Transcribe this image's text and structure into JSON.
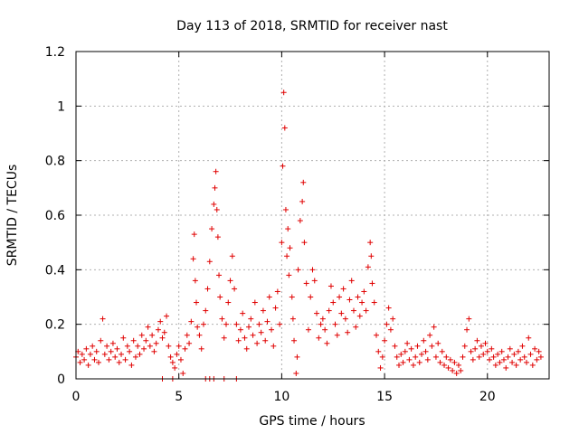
{
  "chart_data": {
    "type": "scatter",
    "title": "Day 113 of 2018, SRMTID for receiver nast",
    "xlabel": "GPS time / hours",
    "ylabel": "SRMTID / TECUs",
    "xlim": [
      0,
      23
    ],
    "ylim": [
      0,
      1.2
    ],
    "xticks": [
      0,
      5,
      10,
      15,
      20
    ],
    "yticks": [
      0,
      0.2,
      0.4,
      0.6,
      0.8,
      1,
      1.2
    ],
    "xtick_labels": [
      "0",
      "5",
      "10",
      "15",
      "20"
    ],
    "ytick_labels": [
      "0",
      "0.2",
      "0.4",
      "0.6",
      "0.8",
      "1",
      "1.2"
    ],
    "grid": true,
    "marker": "+",
    "series": [
      {
        "name": "SRMTID",
        "color": "#e00000",
        "points": [
          [
            0.0,
            0.08
          ],
          [
            0.1,
            0.1
          ],
          [
            0.2,
            0.06
          ],
          [
            0.3,
            0.09
          ],
          [
            0.4,
            0.07
          ],
          [
            0.5,
            0.11
          ],
          [
            0.6,
            0.05
          ],
          [
            0.7,
            0.09
          ],
          [
            0.8,
            0.12
          ],
          [
            0.9,
            0.07
          ],
          [
            1.0,
            0.1
          ],
          [
            1.1,
            0.06
          ],
          [
            1.2,
            0.14
          ],
          [
            1.3,
            0.22
          ],
          [
            1.4,
            0.09
          ],
          [
            1.5,
            0.12
          ],
          [
            1.6,
            0.07
          ],
          [
            1.7,
            0.1
          ],
          [
            1.8,
            0.13
          ],
          [
            1.9,
            0.08
          ],
          [
            2.0,
            0.11
          ],
          [
            2.1,
            0.06
          ],
          [
            2.2,
            0.09
          ],
          [
            2.3,
            0.15
          ],
          [
            2.4,
            0.07
          ],
          [
            2.5,
            0.12
          ],
          [
            2.6,
            0.1
          ],
          [
            2.7,
            0.05
          ],
          [
            2.8,
            0.14
          ],
          [
            2.9,
            0.08
          ],
          [
            3.0,
            0.12
          ],
          [
            3.1,
            0.09
          ],
          [
            3.2,
            0.16
          ],
          [
            3.3,
            0.11
          ],
          [
            3.4,
            0.14
          ],
          [
            3.5,
            0.19
          ],
          [
            3.6,
            0.12
          ],
          [
            3.7,
            0.16
          ],
          [
            3.8,
            0.1
          ],
          [
            3.9,
            0.13
          ],
          [
            4.0,
            0.18
          ],
          [
            4.1,
            0.21
          ],
          [
            4.2,
            0.15
          ],
          [
            4.3,
            0.17
          ],
          [
            4.4,
            0.23
          ],
          [
            4.5,
            0.12
          ],
          [
            4.6,
            0.08
          ],
          [
            4.7,
            0.06
          ],
          [
            4.8,
            0.04
          ],
          [
            4.9,
            0.09
          ],
          [
            5.0,
            0.12
          ],
          [
            5.1,
            0.07
          ],
          [
            5.2,
            0.02
          ],
          [
            5.3,
            0.11
          ],
          [
            5.4,
            0.16
          ],
          [
            5.5,
            0.13
          ],
          [
            5.6,
            0.21
          ],
          [
            5.7,
            0.44
          ],
          [
            5.75,
            0.53
          ],
          [
            5.8,
            0.36
          ],
          [
            5.85,
            0.28
          ],
          [
            5.9,
            0.19
          ],
          [
            6.0,
            0.16
          ],
          [
            6.1,
            0.11
          ],
          [
            6.2,
            0.2
          ],
          [
            6.3,
            0.25
          ],
          [
            6.4,
            0.33
          ],
          [
            6.5,
            0.43
          ],
          [
            6.6,
            0.55
          ],
          [
            6.7,
            0.64
          ],
          [
            6.75,
            0.7
          ],
          [
            6.8,
            0.76
          ],
          [
            6.85,
            0.62
          ],
          [
            6.9,
            0.52
          ],
          [
            6.95,
            0.38
          ],
          [
            7.0,
            0.3
          ],
          [
            7.1,
            0.22
          ],
          [
            7.2,
            0.15
          ],
          [
            7.3,
            0.2
          ],
          [
            7.4,
            0.28
          ],
          [
            7.5,
            0.36
          ],
          [
            7.6,
            0.45
          ],
          [
            7.7,
            0.33
          ],
          [
            7.8,
            0.2
          ],
          [
            7.9,
            0.14
          ],
          [
            8.0,
            0.18
          ],
          [
            8.1,
            0.24
          ],
          [
            8.2,
            0.15
          ],
          [
            8.3,
            0.11
          ],
          [
            8.4,
            0.19
          ],
          [
            8.5,
            0.22
          ],
          [
            8.6,
            0.16
          ],
          [
            8.7,
            0.28
          ],
          [
            8.8,
            0.13
          ],
          [
            8.9,
            0.2
          ],
          [
            9.0,
            0.17
          ],
          [
            9.1,
            0.25
          ],
          [
            9.2,
            0.14
          ],
          [
            9.3,
            0.21
          ],
          [
            9.4,
            0.3
          ],
          [
            9.5,
            0.18
          ],
          [
            9.6,
            0.12
          ],
          [
            9.7,
            0.26
          ],
          [
            9.8,
            0.32
          ],
          [
            9.9,
            0.2
          ],
          [
            10.0,
            0.5
          ],
          [
            10.05,
            0.78
          ],
          [
            10.1,
            1.05
          ],
          [
            10.15,
            0.92
          ],
          [
            10.2,
            0.62
          ],
          [
            10.25,
            0.45
          ],
          [
            10.3,
            0.55
          ],
          [
            10.35,
            0.38
          ],
          [
            10.4,
            0.48
          ],
          [
            10.5,
            0.3
          ],
          [
            10.55,
            0.22
          ],
          [
            10.6,
            0.14
          ],
          [
            10.7,
            0.02
          ],
          [
            10.75,
            0.08
          ],
          [
            10.8,
            0.4
          ],
          [
            10.9,
            0.58
          ],
          [
            11.0,
            0.65
          ],
          [
            11.05,
            0.72
          ],
          [
            11.1,
            0.5
          ],
          [
            11.2,
            0.35
          ],
          [
            11.3,
            0.18
          ],
          [
            11.4,
            0.3
          ],
          [
            11.5,
            0.4
          ],
          [
            11.6,
            0.36
          ],
          [
            11.7,
            0.24
          ],
          [
            11.8,
            0.15
          ],
          [
            11.9,
            0.2
          ],
          [
            12.0,
            0.22
          ],
          [
            12.1,
            0.18
          ],
          [
            12.2,
            0.13
          ],
          [
            12.3,
            0.25
          ],
          [
            12.4,
            0.34
          ],
          [
            12.5,
            0.28
          ],
          [
            12.6,
            0.2
          ],
          [
            12.7,
            0.16
          ],
          [
            12.8,
            0.3
          ],
          [
            12.9,
            0.24
          ],
          [
            13.0,
            0.33
          ],
          [
            13.1,
            0.22
          ],
          [
            13.2,
            0.17
          ],
          [
            13.3,
            0.29
          ],
          [
            13.4,
            0.36
          ],
          [
            13.5,
            0.25
          ],
          [
            13.6,
            0.19
          ],
          [
            13.7,
            0.3
          ],
          [
            13.8,
            0.23
          ],
          [
            13.9,
            0.28
          ],
          [
            14.0,
            0.32
          ],
          [
            14.1,
            0.25
          ],
          [
            14.2,
            0.41
          ],
          [
            14.3,
            0.5
          ],
          [
            14.35,
            0.45
          ],
          [
            14.4,
            0.35
          ],
          [
            14.5,
            0.28
          ],
          [
            14.6,
            0.16
          ],
          [
            14.7,
            0.1
          ],
          [
            14.8,
            0.04
          ],
          [
            14.9,
            0.08
          ],
          [
            15.0,
            0.14
          ],
          [
            15.1,
            0.2
          ],
          [
            15.2,
            0.26
          ],
          [
            15.3,
            0.18
          ],
          [
            15.4,
            0.22
          ],
          [
            15.5,
            0.12
          ],
          [
            15.6,
            0.08
          ],
          [
            15.7,
            0.05
          ],
          [
            15.8,
            0.09
          ],
          [
            15.9,
            0.06
          ],
          [
            16.0,
            0.1
          ],
          [
            16.1,
            0.13
          ],
          [
            16.2,
            0.07
          ],
          [
            16.3,
            0.11
          ],
          [
            16.4,
            0.05
          ],
          [
            16.5,
            0.08
          ],
          [
            16.6,
            0.12
          ],
          [
            16.7,
            0.06
          ],
          [
            16.8,
            0.09
          ],
          [
            16.9,
            0.14
          ],
          [
            17.0,
            0.1
          ],
          [
            17.1,
            0.07
          ],
          [
            17.2,
            0.16
          ],
          [
            17.3,
            0.12
          ],
          [
            17.4,
            0.19
          ],
          [
            17.5,
            0.08
          ],
          [
            17.6,
            0.13
          ],
          [
            17.7,
            0.06
          ],
          [
            17.8,
            0.1
          ],
          [
            17.9,
            0.05
          ],
          [
            18.0,
            0.08
          ],
          [
            18.1,
            0.04
          ],
          [
            18.2,
            0.07
          ],
          [
            18.3,
            0.03
          ],
          [
            18.4,
            0.06
          ],
          [
            18.5,
            0.02
          ],
          [
            18.6,
            0.05
          ],
          [
            18.7,
            0.03
          ],
          [
            18.8,
            0.08
          ],
          [
            18.9,
            0.12
          ],
          [
            19.0,
            0.18
          ],
          [
            19.1,
            0.22
          ],
          [
            19.2,
            0.1
          ],
          [
            19.3,
            0.07
          ],
          [
            19.4,
            0.11
          ],
          [
            19.5,
            0.14
          ],
          [
            19.6,
            0.08
          ],
          [
            19.7,
            0.12
          ],
          [
            19.8,
            0.09
          ],
          [
            19.9,
            0.13
          ],
          [
            20.0,
            0.1
          ],
          [
            20.1,
            0.07
          ],
          [
            20.2,
            0.11
          ],
          [
            20.3,
            0.08
          ],
          [
            20.4,
            0.05
          ],
          [
            20.5,
            0.09
          ],
          [
            20.6,
            0.06
          ],
          [
            20.7,
            0.1
          ],
          [
            20.8,
            0.07
          ],
          [
            20.9,
            0.04
          ],
          [
            21.0,
            0.08
          ],
          [
            21.1,
            0.11
          ],
          [
            21.2,
            0.06
          ],
          [
            21.3,
            0.09
          ],
          [
            21.4,
            0.05
          ],
          [
            21.5,
            0.1
          ],
          [
            21.6,
            0.07
          ],
          [
            21.7,
            0.12
          ],
          [
            21.8,
            0.08
          ],
          [
            21.9,
            0.06
          ],
          [
            22.0,
            0.15
          ],
          [
            22.1,
            0.09
          ],
          [
            22.2,
            0.05
          ],
          [
            22.3,
            0.11
          ],
          [
            22.4,
            0.07
          ],
          [
            22.5,
            0.1
          ],
          [
            22.6,
            0.08
          ],
          [
            4.2,
            0.0
          ],
          [
            4.7,
            0.0
          ],
          [
            6.3,
            0.0
          ],
          [
            6.5,
            0.0
          ],
          [
            6.7,
            0.0
          ],
          [
            7.2,
            0.0
          ],
          [
            7.8,
            0.0
          ]
        ]
      }
    ]
  }
}
